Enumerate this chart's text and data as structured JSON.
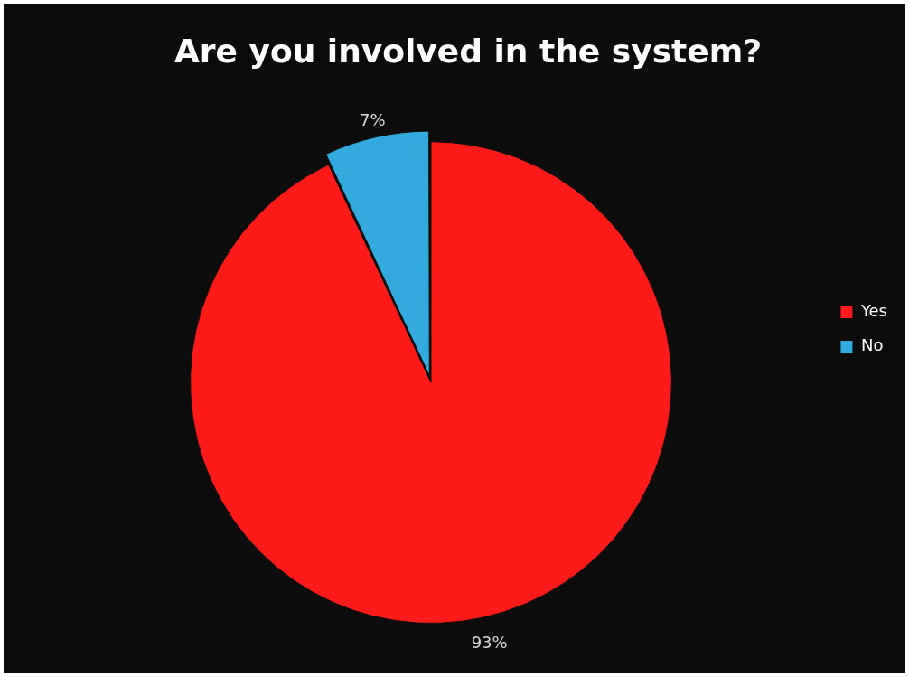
{
  "chart_data": {
    "type": "pie",
    "title": "Are you involved in the system?",
    "categories": [
      "Yes",
      "No"
    ],
    "values": [
      93,
      7
    ],
    "colors": [
      "#ff1a1a",
      "#33aadd"
    ],
    "value_labels": [
      "93%",
      "7%"
    ],
    "legend": "right"
  }
}
